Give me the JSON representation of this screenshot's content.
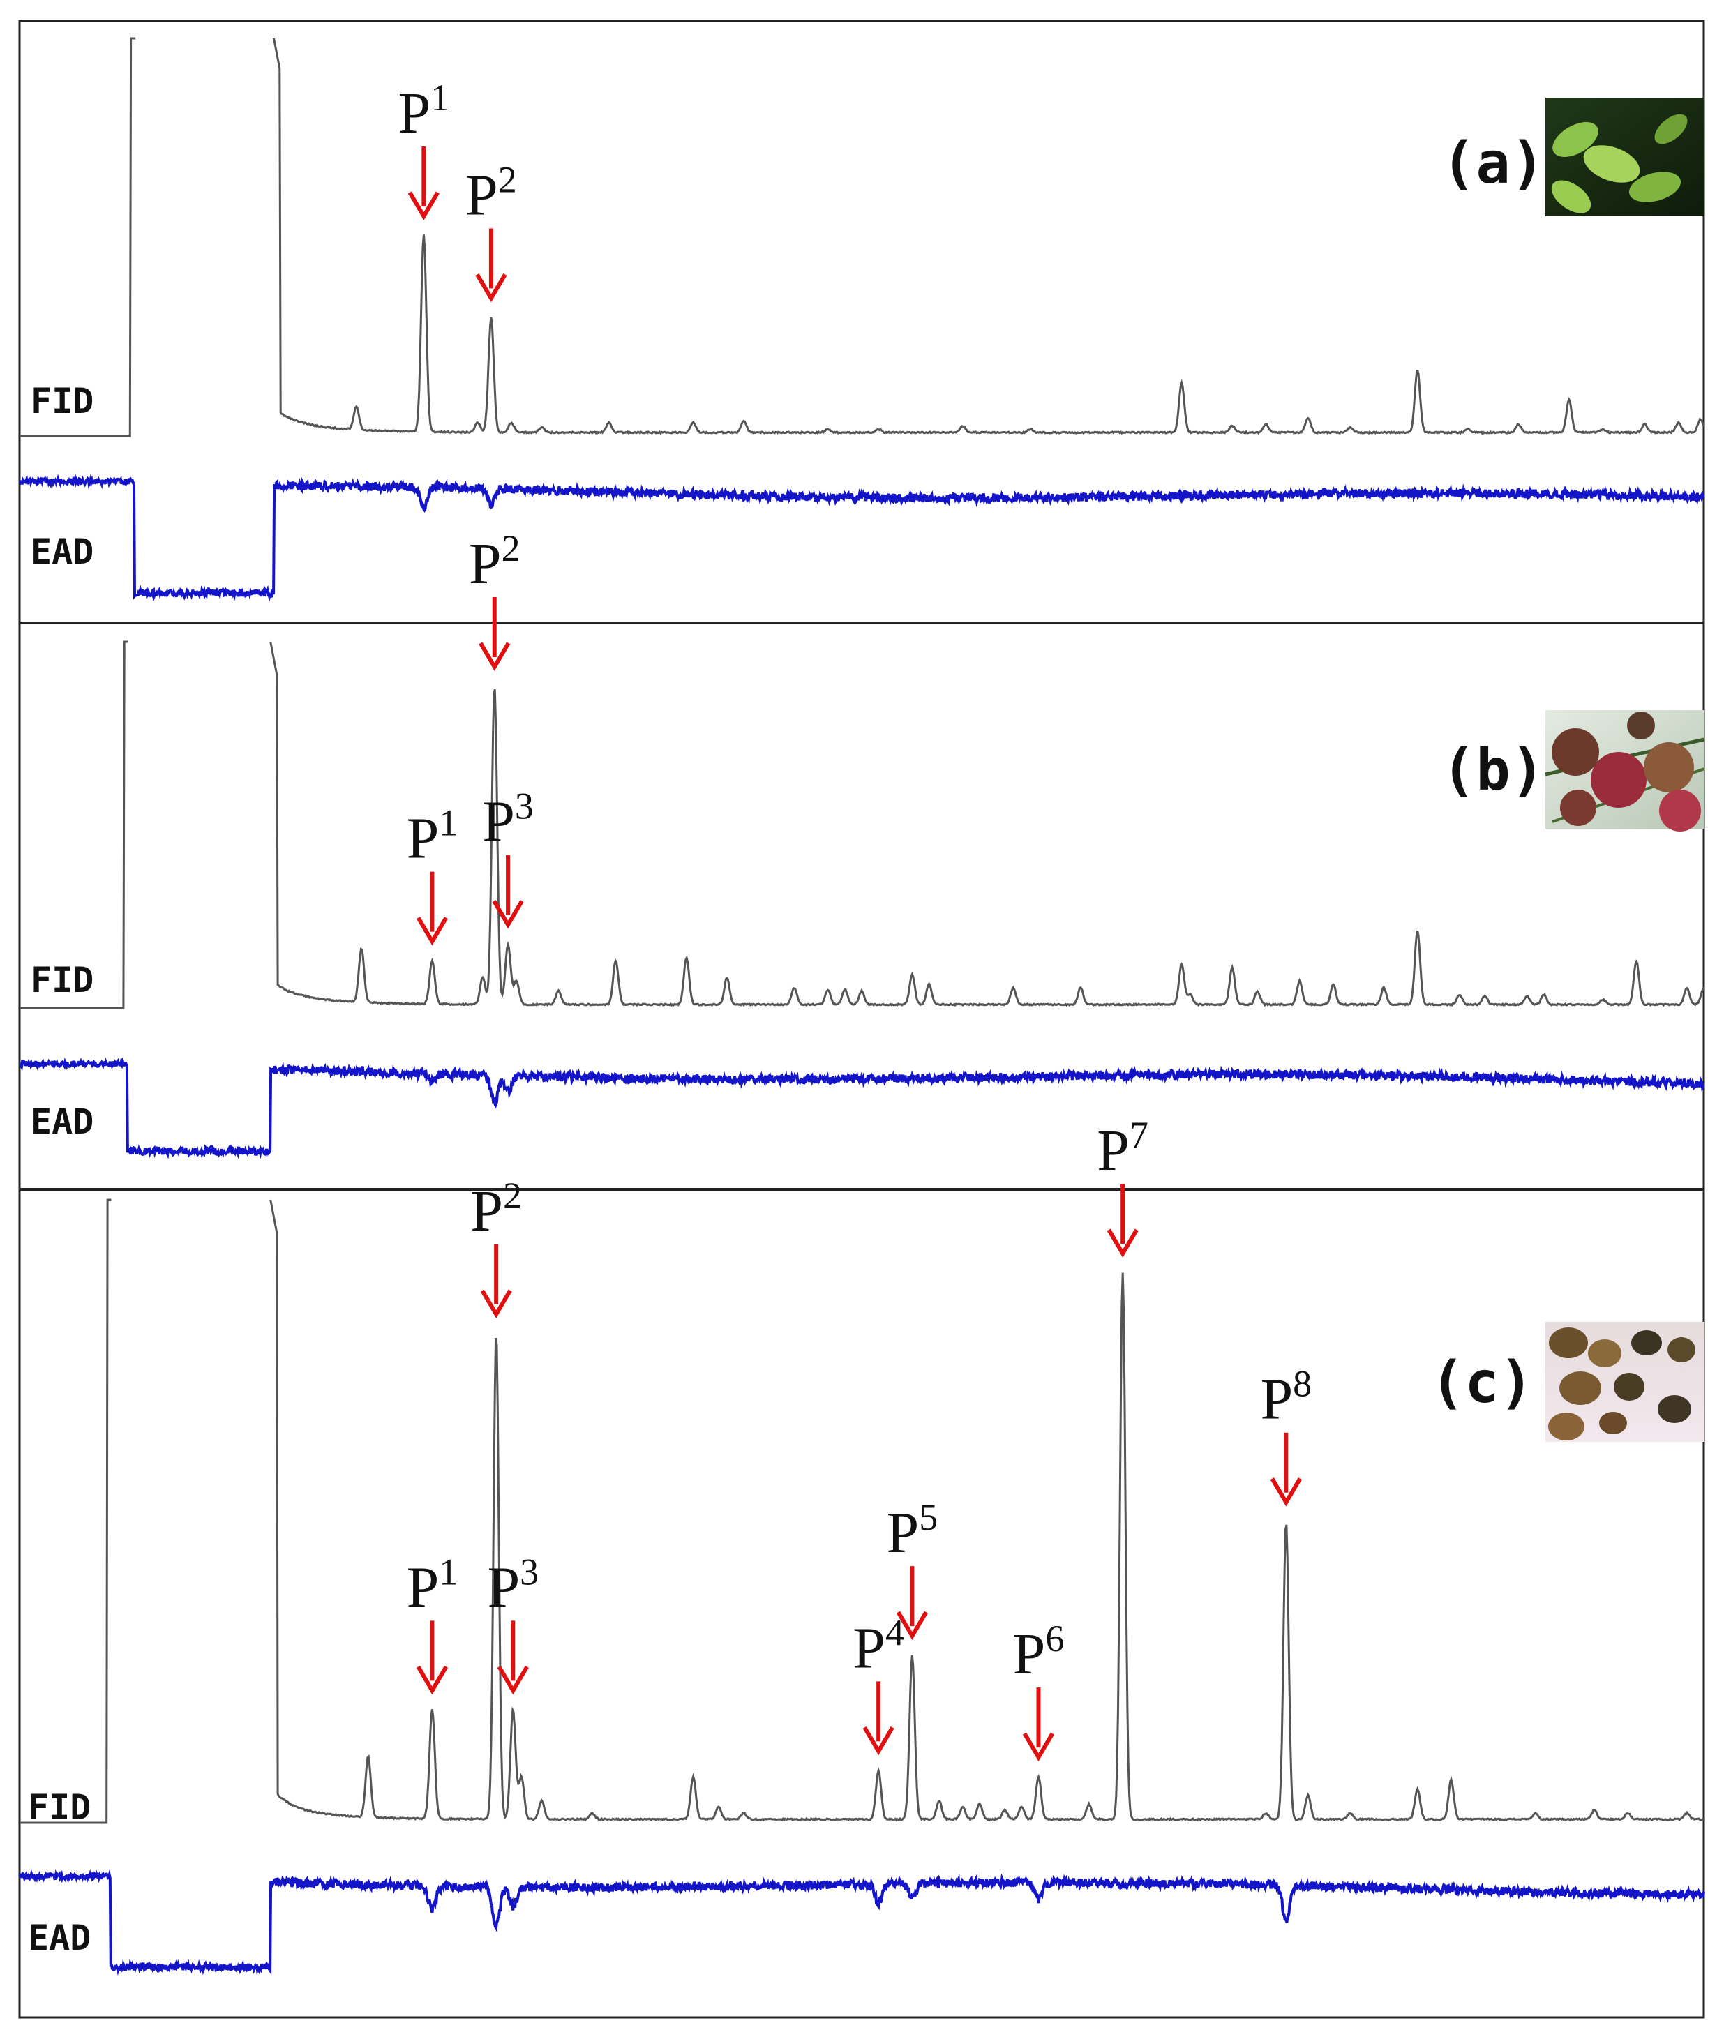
{
  "chart_data": [
    {
      "type": "line",
      "panel_label": "(a)",
      "photo": "leaves-photo",
      "traces": [
        "FID",
        "EAD"
      ],
      "peaks": [
        {
          "label": "P",
          "sup": "1",
          "x": 0.24,
          "height": 0.6,
          "ead_response": 0.5
        },
        {
          "label": "P",
          "sup": "2",
          "x": 0.28,
          "height": 0.35,
          "ead_response": 0.4
        }
      ],
      "colors": {
        "fid": "#555555",
        "ead": "#1414c8",
        "arrow": "#e01010"
      }
    },
    {
      "type": "line",
      "panel_label": "(b)",
      "photo": "fruits-photo",
      "traces": [
        "FID",
        "EAD"
      ],
      "peaks": [
        {
          "label": "P",
          "sup": "1",
          "x": 0.245,
          "height": 0.13,
          "ead_response": 0.2
        },
        {
          "label": "P",
          "sup": "2",
          "x": 0.282,
          "height": 0.95,
          "ead_response": 0.7
        },
        {
          "label": "P",
          "sup": "3",
          "x": 0.29,
          "height": 0.18,
          "ead_response": 0.4
        }
      ],
      "colors": {
        "fid": "#555555",
        "ead": "#1414c8",
        "arrow": "#e01010"
      }
    },
    {
      "type": "line",
      "panel_label": "(c)",
      "photo": "seeds-photo",
      "traces": [
        "FID",
        "EAD"
      ],
      "peaks": [
        {
          "label": "P",
          "sup": "1",
          "x": 0.245,
          "height": 0.18,
          "ead_response": 0.6
        },
        {
          "label": "P",
          "sup": "2",
          "x": 0.283,
          "height": 0.8,
          "ead_response": 1.0
        },
        {
          "label": "P",
          "sup": "3",
          "x": 0.293,
          "height": 0.18,
          "ead_response": 0.5
        },
        {
          "label": "P",
          "sup": "4",
          "x": 0.51,
          "height": 0.08,
          "ead_response": 0.5
        },
        {
          "label": "P",
          "sup": "5",
          "x": 0.53,
          "height": 0.27,
          "ead_response": 0.4
        },
        {
          "label": "P",
          "sup": "6",
          "x": 0.605,
          "height": 0.07,
          "ead_response": 0.45
        },
        {
          "label": "P",
          "sup": "7",
          "x": 0.655,
          "height": 0.9,
          "ead_response": 0.1
        },
        {
          "label": "P",
          "sup": "8",
          "x": 0.752,
          "height": 0.49,
          "ead_response": 0.9
        }
      ],
      "colors": {
        "fid": "#555555",
        "ead": "#1414c8",
        "arrow": "#e01010"
      }
    }
  ]
}
